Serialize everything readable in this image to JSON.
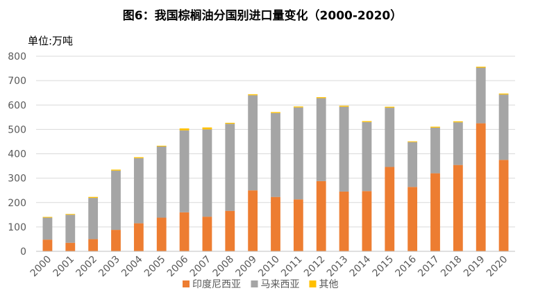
{
  "colors": {
    "india": "#ED7D31",
    "malaysia": "#A5A5A5",
    "other": "#FFC000",
    "grid": "#D9D9D9",
    "axis": "#BFBFBF",
    "text": "#595959"
  },
  "chart_data": {
    "type": "bar",
    "stacked": true,
    "title": "图6：我国棕榈油分国别进口量变化（2000-2020）",
    "unit_label": "单位:万吨",
    "categories": [
      "2000",
      "2001",
      "2002",
      "2003",
      "2004",
      "2005",
      "2006",
      "2007",
      "2008",
      "2009",
      "2010",
      "2011",
      "2012",
      "2013",
      "2014",
      "2015",
      "2016",
      "2017",
      "2018",
      "2019",
      "2020"
    ],
    "series": [
      {
        "name": "印度尼西亚",
        "color": "#ED7D31",
        "values": [
          48,
          35,
          50,
          88,
          115,
          138,
          160,
          142,
          166,
          250,
          223,
          213,
          288,
          245,
          247,
          346,
          264,
          320,
          354,
          525,
          375
        ]
      },
      {
        "name": "马来西亚",
        "color": "#A5A5A5",
        "values": [
          90,
          115,
          169,
          243,
          267,
          292,
          336,
          358,
          357,
          390,
          344,
          377,
          340,
          348,
          283,
          243,
          184,
          187,
          175,
          228,
          268
        ]
      },
      {
        "name": "其他",
        "color": "#FFC000",
        "values": [
          3,
          3,
          4,
          4,
          4,
          3,
          8,
          8,
          4,
          4,
          4,
          4,
          4,
          4,
          4,
          4,
          3,
          4,
          4,
          4,
          4
        ]
      }
    ],
    "ylim": [
      0,
      800
    ],
    "yticks": [
      0,
      100,
      200,
      300,
      400,
      500,
      600,
      700,
      800
    ],
    "grid": true,
    "legend_position": "bottom"
  }
}
